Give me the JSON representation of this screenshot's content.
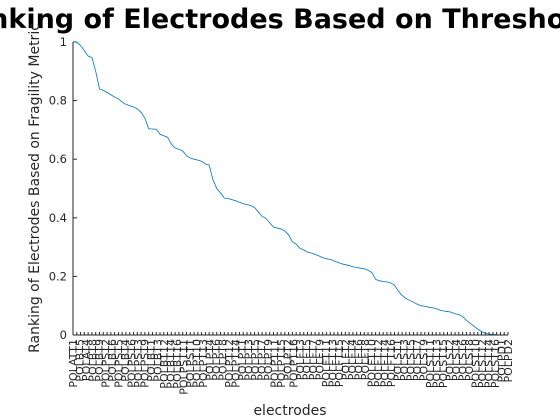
{
  "chart_data": {
    "type": "line",
    "title": "Ranking of Electrodes Based on Threshold",
    "xlabel": "electrodes",
    "ylabel": "Ranking of Electrodes Based on Fragility Metric",
    "ylim": [
      0,
      1
    ],
    "yticks": [
      "0",
      "0.2",
      "0.4",
      "0.6",
      "0.8",
      "1"
    ],
    "xlim": [
      1,
      116
    ],
    "grid": false,
    "x_tick_labels": [
      "POLATT1",
      "POLBT5",
      "POLAT4",
      "POLBT8",
      "POLBT9",
      "POLPST2",
      "POLBT6",
      "POLPST5",
      "POLBT4",
      "POLPST6",
      "POLPST3",
      "POLPST9",
      "POLBT1",
      "POLBT3",
      "POLBT12",
      "POLBT14",
      "POLBT16",
      "POLPST11",
      "POLPST1",
      "POLPT10",
      "POLPT13",
      "POLPT4",
      "POLPT6",
      "POLPT8",
      "POLPT12",
      "POLPT14",
      "POLPT1",
      "POLPT3",
      "POLPT5",
      "POLPT7",
      "POLPT9",
      "POLPT11",
      "POLPT15",
      "POLPT2",
      "POLPT16",
      "POLFT3",
      "POLFT5",
      "POLFT7",
      "POLFT9",
      "POLFT11",
      "POLFT13",
      "POLFT15",
      "POLFT2",
      "POLFT4",
      "POLFT6",
      "POLFT8",
      "POLFT10",
      "POLFT12",
      "POLFT14",
      "POLFT16",
      "POLST1",
      "POLST3",
      "POLST5",
      "POLST7",
      "POLST9",
      "POLST11",
      "POLST13",
      "POLST15",
      "POLST2",
      "POLST4",
      "POLST6",
      "POLST8",
      "POLST10",
      "POLST12",
      "POLST14",
      "POLST16",
      "POLPD1",
      "POLPD2"
    ],
    "series": [
      {
        "values": [
          1.0,
          0.999,
          0.988,
          0.97,
          0.952,
          0.947,
          0.9,
          0.84,
          0.835,
          0.828,
          0.82,
          0.812,
          0.806,
          0.795,
          0.787,
          0.783,
          0.778,
          0.772,
          0.76,
          0.74,
          0.704,
          0.703,
          0.702,
          0.685,
          0.68,
          0.675,
          0.652,
          0.638,
          0.634,
          0.628,
          0.612,
          0.604,
          0.6,
          0.597,
          0.593,
          0.584,
          0.58,
          0.53,
          0.5,
          0.485,
          0.467,
          0.466,
          0.462,
          0.458,
          0.453,
          0.448,
          0.445,
          0.442,
          0.435,
          0.42,
          0.405,
          0.398,
          0.383,
          0.368,
          0.365,
          0.362,
          0.355,
          0.342,
          0.318,
          0.31,
          0.296,
          0.29,
          0.283,
          0.28,
          0.275,
          0.27,
          0.264,
          0.26,
          0.258,
          0.253,
          0.248,
          0.243,
          0.24,
          0.237,
          0.233,
          0.23,
          0.228,
          0.226,
          0.221,
          0.213,
          0.19,
          0.185,
          0.183,
          0.181,
          0.178,
          0.17,
          0.15,
          0.135,
          0.125,
          0.118,
          0.112,
          0.105,
          0.1,
          0.098,
          0.095,
          0.093,
          0.09,
          0.085,
          0.082,
          0.08,
          0.078,
          0.072,
          0.07,
          0.063,
          0.05,
          0.04,
          0.03,
          0.02,
          0.012,
          0.006,
          0.003,
          0.002,
          0.001,
          0.0,
          0.0,
          0.0
        ]
      }
    ]
  }
}
